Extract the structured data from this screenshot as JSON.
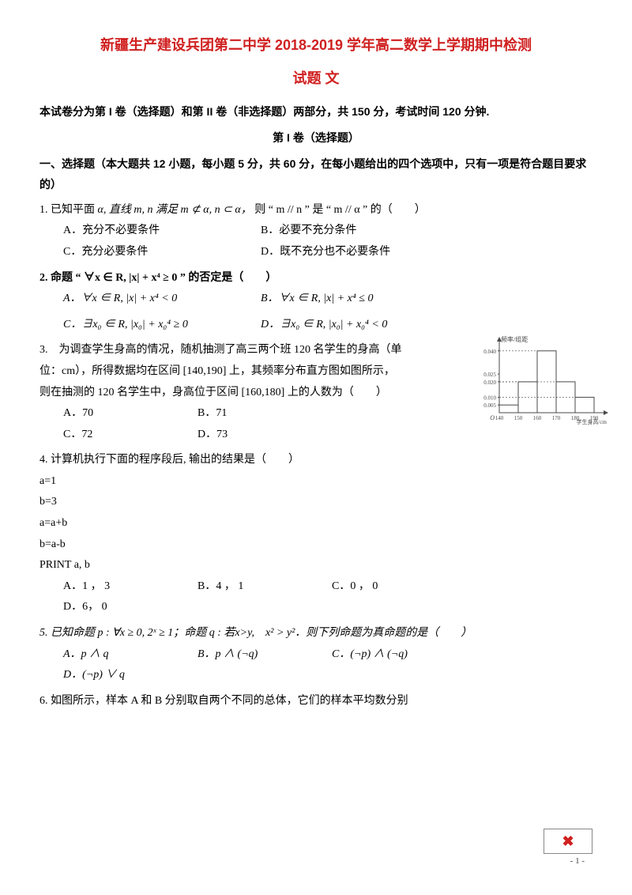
{
  "title_line1": "新疆生产建设兵团第二中学 2018-2019 学年高二数学上学期期中检测",
  "title_line2": "试题 文",
  "intro": "本试卷分为第 I 卷（选择题）和第 II 卷（非选择题）两部分，共 150 分，考试时间 120 分钟.",
  "section_label": "第 I 卷（选择题）",
  "part1_head": "一、选择题（本大题共 12 小题，每小题 5 分，共 60 分，在每小题给出的四个选项中，只有一项是符合题目要求的）",
  "q1": {
    "stem_pre": "1. 已知平面",
    "stem_math": "α, 直线 m, n 满足 m ⊄ α, n ⊂ α，",
    "stem_post": "则 “ m // n ” 是 “ m // α ” 的（　　）",
    "opts": {
      "A": "A．充分不必要条件",
      "B": "B．必要不充分条件",
      "C": "C．充分必要条件",
      "D": "D．既不充分也不必要条件"
    }
  },
  "q2": {
    "stem": "2. 命题 “ ∀x ∈ R, |x| + x⁴ ≥ 0 ” 的否定是（　　）",
    "opts": {
      "A": "A．∀x ∈ R, |x| + x⁴ < 0",
      "B": "B．∀x ∈ R, |x| + x⁴ ≤ 0",
      "C": "C．∃x₀ ∈ R, |x₀| + x₀⁴ ≥ 0",
      "D": "D．∃x₀ ∈ R, |x₀| + x₀⁴ < 0"
    }
  },
  "q3": {
    "stem1": "3.　为调查学生身高的情况，随机抽测了高三两个班 120 名学生的身高（单",
    "stem2": "位：cm），所得数据均在区间 [140,190] 上，其频率分布直方图如图所示，",
    "stem3": "则在抽测的 120 名学生中，身高位于区间 [160,180] 上的人数为（　　）",
    "opts": {
      "A": "A．70",
      "B": "B．71",
      "C": "C．72",
      "D": "D．73"
    },
    "hist": {
      "ylabel": "频率/组距",
      "xlabel": "学生身高/cm",
      "xticks": [
        "140",
        "150",
        "160",
        "170",
        "180",
        "190"
      ],
      "yticks": [
        "0.005",
        "0.010",
        "0.020",
        "0.025",
        "0.040"
      ],
      "bars": [
        0.005,
        0.02,
        0.04,
        0.02,
        0.01
      ],
      "axis_color": "#4a4a4a",
      "bar_color": "#ffffff",
      "bar_stroke": "#4a4a4a",
      "bg": "#ffffff",
      "width": 170,
      "height": 120
    }
  },
  "q4": {
    "stem": "4. 计算机执行下面的程序段后, 输出的结果是（　　）",
    "code": [
      "a=1",
      "b=3",
      "a=a+b",
      "b=a-b",
      "PRINT  a, b"
    ],
    "opts": {
      "A": "A．1 ， 3",
      "B": "B．4 ， 1",
      "C": "C．0 ， 0",
      "D": "D．6， 0"
    }
  },
  "q5": {
    "stem": "5. 已知命题 p : ∀x ≥ 0, 2ˣ ≥ 1；命题 q : 若x>y,　x² > y²．则下列命题为真命题的是（　　）",
    "opts": {
      "A": "A．p ∧ q",
      "B": "B．p ∧ (¬q)",
      "C": "C．(¬p) ∧ (¬q)",
      "D": "D．(¬p) ∨ q"
    }
  },
  "q6": {
    "stem": "6. 如图所示，样本 A 和 B 分别取自两个不同的总体，它们的样本平均数分别"
  },
  "page_num": "- 1 -"
}
